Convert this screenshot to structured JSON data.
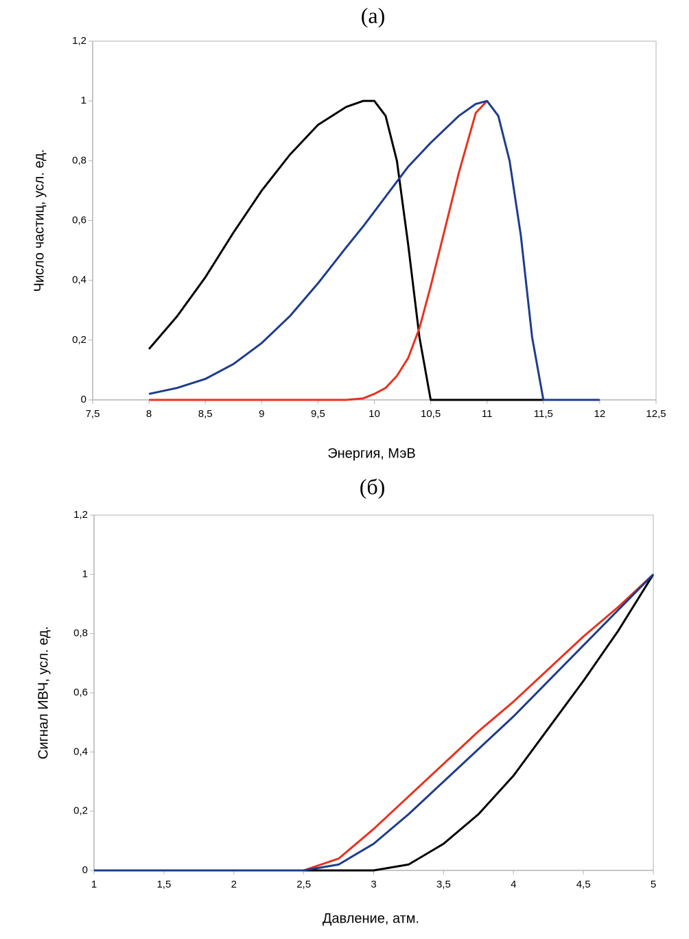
{
  "chart_data": [
    {
      "type": "line",
      "title": "(а)",
      "x_label": "Энергия, МэВ",
      "y_label": "Число частиц, усл. ед.",
      "x": [
        8,
        8.25,
        8.5,
        8.75,
        9,
        9.25,
        9.5,
        9.75,
        9.9,
        10,
        10.1,
        10.2,
        10.3,
        10.4,
        10.5,
        10.75,
        10.9,
        11,
        11.1,
        11.2,
        11.3,
        11.4,
        11.5,
        11.75,
        12
      ],
      "series": [
        {
          "color": "#000000",
          "values": [
            0.17,
            0.28,
            0.41,
            0.56,
            0.7,
            0.82,
            0.92,
            0.98,
            1.0,
            1.0,
            0.95,
            0.8,
            0.52,
            0.21,
            0,
            0,
            0,
            0,
            0,
            0,
            0,
            0,
            0,
            null,
            null
          ]
        },
        {
          "color": "#e8321e",
          "values": [
            0,
            0,
            0,
            0,
            0,
            0,
            0,
            0,
            0.005,
            0.02,
            0.04,
            0.08,
            0.14,
            0.24,
            0.38,
            0.76,
            0.96,
            1.0,
            null,
            null,
            null,
            null,
            null,
            null,
            null
          ]
        },
        {
          "color": "#1e3c8c",
          "values": [
            0.02,
            0.04,
            0.07,
            0.12,
            0.19,
            0.28,
            0.39,
            0.51,
            0.58,
            0.63,
            0.68,
            0.73,
            0.78,
            0.82,
            0.86,
            0.95,
            0.99,
            1.0,
            0.95,
            0.8,
            0.55,
            0.21,
            0,
            0,
            0
          ]
        }
      ],
      "xlim": [
        7.5,
        12.5
      ],
      "xticks": [
        {
          "value": 7.5,
          "label": "7,5"
        },
        8,
        {
          "value": 8.5,
          "label": "8,5"
        },
        9,
        {
          "value": 9.5,
          "label": "9,5"
        },
        10,
        {
          "value": 10.5,
          "label": "10,5"
        },
        11,
        {
          "value": 11.5,
          "label": "11,5"
        },
        12,
        {
          "value": 12.5,
          "label": "12,5"
        }
      ],
      "ylim": [
        0,
        1.2
      ],
      "yticks": [
        0,
        {
          "value": 0.2,
          "label": "0,2"
        },
        {
          "value": 0.4,
          "label": "0,4"
        },
        {
          "value": 0.6,
          "label": "0,6"
        },
        {
          "value": 0.8,
          "label": "0,8"
        },
        1,
        {
          "value": 1.2,
          "label": "1,2"
        }
      ]
    },
    {
      "type": "line",
      "title": "(б)",
      "x_label": "Давление, атм.",
      "y_label": "Сигнал ИВЧ, усл. ед.",
      "x": [
        1,
        1.25,
        1.5,
        1.75,
        2,
        2.25,
        2.5,
        2.75,
        3,
        3.25,
        3.5,
        3.75,
        4,
        4.25,
        4.5,
        4.75,
        5
      ],
      "series": [
        {
          "color": "#000000",
          "values": [
            0,
            0,
            0,
            0,
            0,
            0,
            0,
            0,
            0,
            0.02,
            0.09,
            0.19,
            0.32,
            0.48,
            0.64,
            0.81,
            1.0
          ]
        },
        {
          "color": "#e8321e",
          "values": [
            0,
            0,
            0,
            0,
            0,
            0,
            0,
            0.04,
            0.14,
            0.25,
            0.36,
            0.47,
            0.57,
            0.68,
            0.79,
            0.89,
            1.0
          ]
        },
        {
          "color": "#1e3c8c",
          "values": [
            0,
            0,
            0,
            0,
            0,
            0,
            0,
            0.02,
            0.09,
            0.19,
            0.3,
            0.41,
            0.52,
            0.64,
            0.76,
            0.88,
            1.0
          ]
        }
      ],
      "xlim": [
        1,
        5
      ],
      "xticks": [
        1,
        {
          "value": 1.5,
          "label": "1,5"
        },
        2,
        {
          "value": 2.5,
          "label": "2,5"
        },
        3,
        {
          "value": 3.5,
          "label": "3,5"
        },
        4,
        {
          "value": 4.5,
          "label": "4,5"
        },
        5
      ],
      "ylim": [
        0,
        1.2
      ],
      "yticks": [
        0,
        {
          "value": 0.2,
          "label": "0,2"
        },
        {
          "value": 0.4,
          "label": "0,4"
        },
        {
          "value": 0.6,
          "label": "0,6"
        },
        {
          "value": 0.8,
          "label": "0,8"
        },
        1,
        {
          "value": 1.2,
          "label": "1,2"
        }
      ]
    }
  ]
}
